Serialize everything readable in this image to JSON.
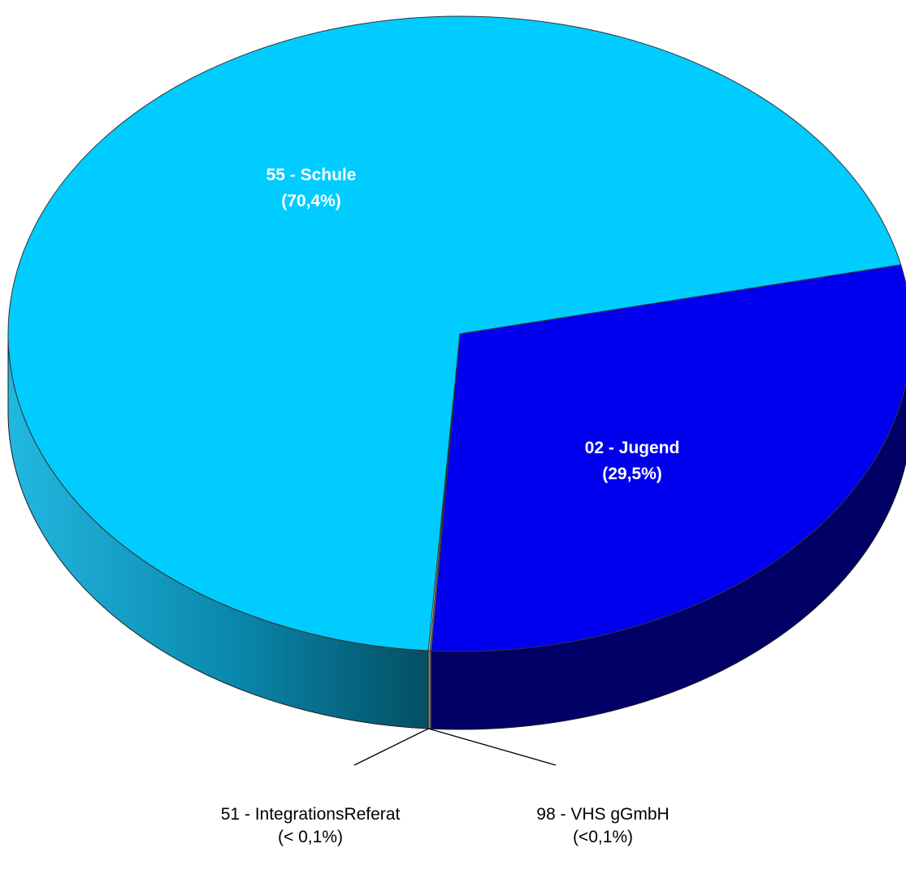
{
  "chart_data": {
    "type": "pie",
    "style": "3d",
    "slices": [
      {
        "name": "55 - Schule",
        "value": 70.4,
        "percent_label": "(70,4%)",
        "color": "#00ccff",
        "side_color": "#0099bb",
        "label_inside": true
      },
      {
        "name": "02 - Jugend",
        "value": 29.5,
        "percent_label": "(29,5%)",
        "color": "#0000ee",
        "side_color": "#000066",
        "label_inside": true
      },
      {
        "name": "51 - IntegrationsReferat",
        "value": 0.05,
        "percent_label": "(< 0,1%)",
        "color": "#9999cc",
        "label_inside": false
      },
      {
        "name": "98 - VHS gGmbH",
        "value": 0.05,
        "percent_label": "(<0,1%)",
        "color": "#ffffcc",
        "label_inside": false
      }
    ]
  }
}
